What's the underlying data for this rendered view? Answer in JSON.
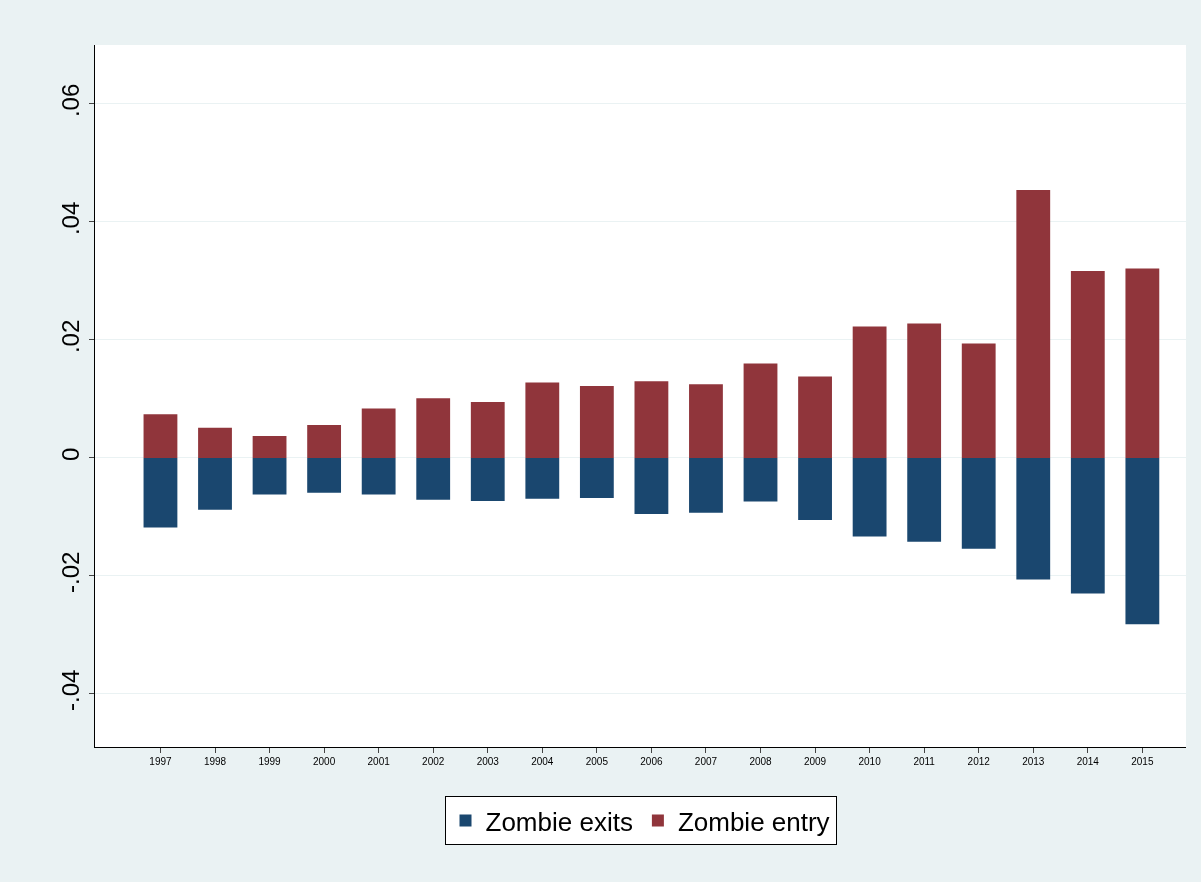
{
  "chart_data": {
    "type": "bar",
    "categories": [
      "1997",
      "1998",
      "1999",
      "2000",
      "2001",
      "2002",
      "2003",
      "2004",
      "2005",
      "2006",
      "2007",
      "2008",
      "2009",
      "2010",
      "2011",
      "2012",
      "2013",
      "2014",
      "2015"
    ],
    "series": [
      {
        "name": "Zombie exits",
        "color": "#1a476f",
        "values": [
          -0.0118,
          -0.0088,
          -0.0062,
          -0.0059,
          -0.0062,
          -0.0071,
          -0.0073,
          -0.0069,
          -0.0068,
          -0.0095,
          -0.0093,
          -0.0074,
          -0.0105,
          -0.0133,
          -0.0142,
          -0.0154,
          -0.0206,
          -0.023,
          -0.0282
        ]
      },
      {
        "name": "Zombie entry",
        "color": "#90353b",
        "values": [
          0.0074,
          0.0051,
          0.0037,
          0.0056,
          0.0084,
          0.0101,
          0.0095,
          0.0128,
          0.0122,
          0.013,
          0.0125,
          0.016,
          0.0138,
          0.0223,
          0.0228,
          0.0194,
          0.0454,
          0.0317,
          0.0321
        ]
      }
    ],
    "ylim": [
      -0.049,
      0.07
    ],
    "yticks": [
      {
        "value": -0.04,
        "label": "-.04"
      },
      {
        "value": -0.02,
        "label": "-.02"
      },
      0,
      {
        "value": 0.02,
        "label": ".02"
      },
      {
        "value": 0.04,
        "label": ".04"
      },
      {
        "value": 0.06,
        "label": ".06"
      }
    ],
    "stacked": true,
    "grid": "y",
    "legend": "bottom"
  }
}
